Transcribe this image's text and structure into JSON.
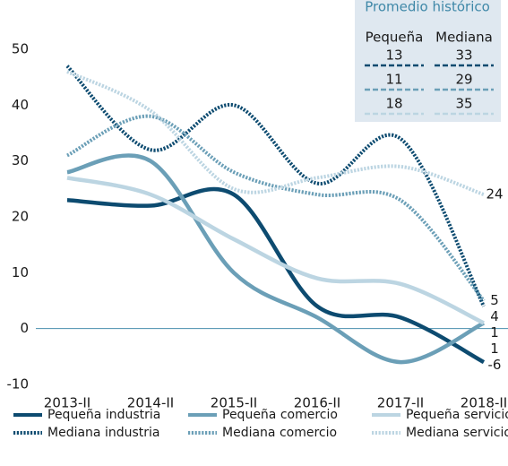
{
  "chart_data": {
    "type": "line",
    "categories": [
      "2013-II",
      "2014-II",
      "2015-II",
      "2016-II",
      "2017-II",
      "2018-II"
    ],
    "ylim": [
      -10,
      50
    ],
    "yticks": [
      -10,
      0,
      10,
      20,
      30,
      40,
      50
    ],
    "series": [
      {
        "name": "Pequeña industria",
        "color": "#0d4b70",
        "style": "solid",
        "values": [
          23,
          22,
          24,
          4,
          2,
          -6
        ]
      },
      {
        "name": "Pequeña comercio",
        "color": "#6b9fb7",
        "style": "solid",
        "values": [
          28,
          30,
          10,
          2,
          -6,
          1
        ]
      },
      {
        "name": "Pequeña servicios",
        "color": "#bcd5e2",
        "style": "solid",
        "values": [
          27,
          24,
          16,
          9,
          8,
          1
        ]
      },
      {
        "name": "Mediana industria",
        "color": "#0d4b70",
        "style": "dotted",
        "values": [
          47,
          32,
          40,
          26,
          34,
          4
        ]
      },
      {
        "name": "Mediana comercio",
        "color": "#6b9fb7",
        "style": "dotted",
        "values": [
          31,
          38,
          28,
          24,
          23,
          5
        ]
      },
      {
        "name": "Mediana servicios",
        "color": "#bcd5e2",
        "style": "dotted",
        "values": [
          46,
          39,
          25,
          27,
          29,
          24
        ]
      }
    ]
  },
  "inset": {
    "title": "Promedio histórico",
    "columns": [
      "Pequeña",
      "Mediana"
    ],
    "rows": [
      {
        "values": [
          "13",
          "33"
        ],
        "color": "#0d4b70"
      },
      {
        "values": [
          "11",
          "29"
        ],
        "color": "#6b9fb7"
      },
      {
        "values": [
          "18",
          "35"
        ],
        "color": "#bcd5e2"
      }
    ]
  }
}
